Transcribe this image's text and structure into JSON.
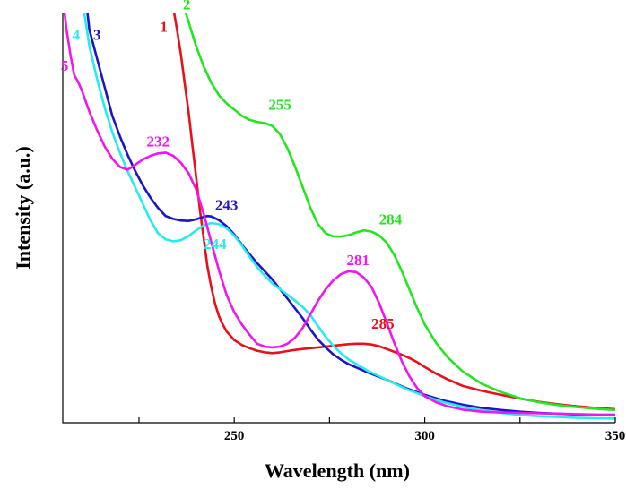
{
  "chart_data": {
    "type": "line",
    "xlabel": "Wavelength (nm)",
    "ylabel": "Intensity (a.u.)",
    "xlim": [
      205,
      350
    ],
    "ylim": [
      0,
      100
    ],
    "y_ticks_labeled": false,
    "grid": false,
    "legend": "none",
    "x_ticks": [
      {
        "value": 225,
        "label": ""
      },
      {
        "value": 250,
        "label": "250"
      },
      {
        "value": 275,
        "label": ""
      },
      {
        "value": 300,
        "label": "300"
      },
      {
        "value": 325,
        "label": ""
      },
      {
        "value": 350,
        "label": "350"
      }
    ],
    "series": [
      {
        "name": "1",
        "color": "#e8101a",
        "x": [
          233.5,
          235,
          236,
          237,
          238,
          239,
          240,
          241,
          242,
          243,
          244,
          245,
          246,
          247,
          248,
          250,
          252,
          254,
          256,
          258,
          260,
          262,
          264,
          266,
          268,
          270,
          272,
          274,
          276,
          278,
          280,
          282,
          284,
          286,
          288,
          290,
          292,
          294,
          296,
          298,
          300,
          303,
          306,
          310,
          315,
          320,
          325,
          330,
          335,
          340,
          345,
          350
        ],
        "y": [
          104,
          96,
          90,
          83,
          76,
          68,
          60,
          52,
          45,
          38,
          33,
          29,
          26,
          24,
          22.3,
          20.2,
          19,
          18.2,
          17.6,
          17.2,
          17.0,
          17.2,
          17.5,
          17.8,
          18.0,
          18.2,
          18.4,
          18.6,
          18.8,
          19.0,
          19.2,
          19.3,
          19.3,
          19.1,
          18.7,
          18.0,
          17.3,
          16.6,
          15.8,
          14.8,
          13.6,
          12.0,
          10.6,
          9.0,
          7.8,
          6.8,
          5.9,
          5.1,
          4.5,
          4.0,
          3.6,
          3.3
        ]
      },
      {
        "name": "2",
        "color": "#22e61e",
        "x": [
          236,
          238,
          240,
          242,
          244,
          246,
          248,
          250,
          252,
          254,
          256,
          258,
          260,
          262,
          264,
          266,
          268,
          270,
          272,
          274,
          276,
          278,
          280,
          282,
          284,
          286,
          288,
          290,
          292,
          294,
          296,
          298,
          300,
          303,
          306,
          310,
          315,
          320,
          325,
          330,
          335,
          340,
          345,
          350
        ],
        "y": [
          104,
          98,
          92,
          87,
          83,
          80,
          78,
          76.5,
          75,
          74,
          73.5,
          73.2,
          72.5,
          70.5,
          67,
          62.5,
          57.5,
          52.5,
          48.5,
          46.3,
          45.5,
          45.5,
          45.8,
          46.5,
          47.0,
          46.7,
          45.8,
          44.0,
          41.0,
          37.0,
          32.5,
          28.0,
          24.0,
          19.5,
          16.0,
          12.5,
          9.5,
          7.5,
          6.0,
          5.0,
          4.3,
          3.8,
          3.4,
          3.1
        ]
      },
      {
        "name": "3",
        "color": "#1d13c7",
        "x": [
          211,
          212,
          214,
          216,
          218,
          220,
          222,
          224,
          226,
          228,
          230,
          232,
          234,
          236,
          238,
          240,
          242,
          243,
          244,
          246,
          248,
          250,
          252,
          254,
          256,
          258,
          260,
          262,
          264,
          266,
          268,
          270,
          272,
          274,
          276,
          278,
          280,
          285,
          290,
          295,
          300,
          305,
          310,
          315,
          320,
          325,
          330,
          335,
          340,
          345,
          350
        ],
        "y": [
          104,
          96,
          89,
          82,
          75,
          70,
          65.5,
          61.5,
          58,
          55,
          52.5,
          50.5,
          49.8,
          49.4,
          49.3,
          49.7,
          50.3,
          50.5,
          50.4,
          49.5,
          48,
          46,
          43.5,
          41.2,
          39,
          37.0,
          35.0,
          32.6,
          30.3,
          27.9,
          25.5,
          22.8,
          20.3,
          18.4,
          16.7,
          15.4,
          14.3,
          12.3,
          10.5,
          8.5,
          6.8,
          5.4,
          4.4,
          3.6,
          3.1,
          2.7,
          2.4,
          2.2,
          2.0,
          1.9,
          1.8
        ]
      },
      {
        "name": "4",
        "color": "#28ebeb",
        "x": [
          210,
          212,
          214,
          216,
          218,
          220,
          222,
          224,
          226,
          228,
          230,
          232,
          234,
          236,
          238,
          240,
          242,
          244,
          246,
          248,
          250,
          252,
          254,
          256,
          258,
          260,
          262,
          264,
          266,
          268,
          270,
          272,
          274,
          276,
          278,
          280,
          285,
          290,
          295,
          300,
          305,
          310,
          315,
          320,
          325,
          330,
          335,
          340,
          345,
          350
        ],
        "y": [
          104,
          92,
          84,
          77,
          71,
          66,
          61.5,
          57.5,
          53.5,
          49.5,
          46.3,
          44.8,
          44.3,
          44.6,
          45.6,
          47.0,
          48.2,
          48.8,
          48.5,
          47.5,
          45.7,
          43.3,
          40.6,
          38.0,
          35.9,
          34.0,
          32.6,
          31.3,
          29.8,
          28.3,
          26.3,
          23.6,
          21.0,
          18.8,
          17.0,
          15.5,
          12.7,
          10.5,
          8.3,
          6.5,
          5.0,
          3.9,
          3.0,
          2.4,
          1.9,
          1.6,
          1.4,
          1.2,
          1.1,
          1.0
        ]
      },
      {
        "name": "5",
        "color": "#f016ee",
        "x": [
          205,
          206,
          207,
          208,
          209,
          210,
          212,
          214,
          216,
          218,
          220,
          222,
          224,
          226,
          228,
          230,
          232,
          234,
          236,
          238,
          240,
          242,
          244,
          246,
          248,
          250,
          252,
          254,
          256,
          258,
          260,
          262,
          264,
          266,
          268,
          270,
          272,
          274,
          276,
          278,
          280,
          282,
          284,
          286,
          288,
          290,
          292,
          294,
          296,
          298,
          300,
          303,
          306,
          310,
          315,
          320,
          325,
          330,
          335,
          340,
          345,
          350
        ],
        "y": [
          104,
          96,
          90,
          85,
          83.3,
          81.2,
          76,
          71.5,
          67.5,
          64.5,
          62.5,
          61.8,
          63,
          64.3,
          65.2,
          65.8,
          66,
          65.2,
          63.5,
          61,
          57,
          51,
          44,
          37.2,
          31.2,
          27,
          24,
          21.5,
          19.3,
          18.6,
          18.4,
          18.6,
          19.3,
          20.8,
          23.2,
          26.5,
          29.8,
          32.6,
          34.8,
          36.3,
          37.0,
          36.8,
          35.5,
          33.2,
          29.3,
          24.5,
          19.5,
          15.0,
          11.3,
          8.5,
          6.5,
          5.0,
          4.0,
          3.2,
          2.7,
          2.5,
          2.4,
          2.3,
          2.2,
          2.1,
          2.0,
          2.0
        ]
      }
    ],
    "series_labels": [
      {
        "text": "1",
        "color": "#e8101a",
        "x": 231.5,
        "y": 95.5
      },
      {
        "text": "2",
        "color": "#22e61e",
        "x": 237.5,
        "y": 101
      },
      {
        "text": "3",
        "color": "#1d13c7",
        "x": 214,
        "y": 93.5
      },
      {
        "text": "4",
        "color": "#28ebeb",
        "x": 208.5,
        "y": 93.5
      },
      {
        "text": "5",
        "color": "#f016ee",
        "x": 205.5,
        "y": 86
      }
    ],
    "annotations": [
      {
        "text": "255",
        "color": "#22e61e",
        "x": 262,
        "y": 76.5
      },
      {
        "text": "284",
        "color": "#22e61e",
        "x": 291,
        "y": 48.5
      },
      {
        "text": "232",
        "color": "#f016ee",
        "x": 230,
        "y": 67.5
      },
      {
        "text": "243",
        "color": "#1d13c7",
        "x": 248,
        "y": 52
      },
      {
        "text": "244",
        "color": "#28ebeb",
        "x": 245,
        "y": 42.5
      },
      {
        "text": "281",
        "color": "#f016ee",
        "x": 282.5,
        "y": 38.5
      },
      {
        "text": "285",
        "color": "#e8101a",
        "x": 289,
        "y": 23
      }
    ]
  }
}
